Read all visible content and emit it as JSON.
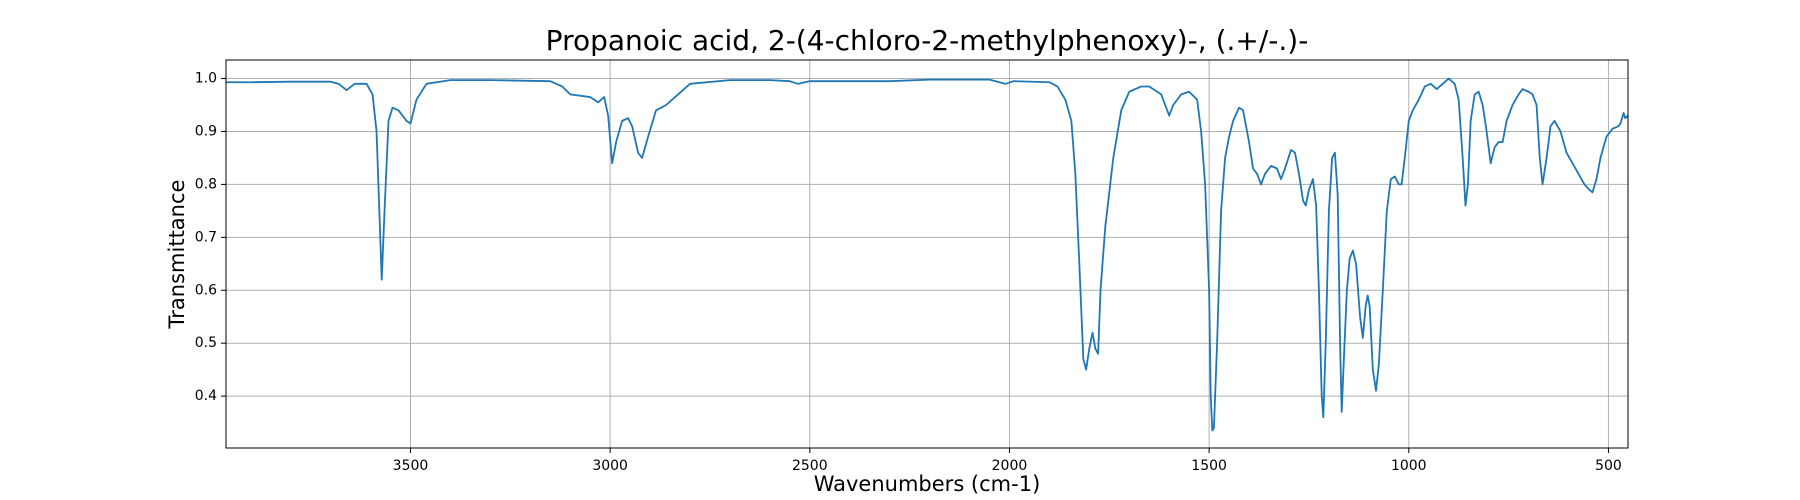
{
  "chart_data": {
    "type": "line",
    "title": "Propanoic acid, 2-(4-chloro-2-methylphenoxy)-, (.+/-.)-",
    "x_label": "Wavenumbers (cm-1)",
    "y_label": "Transmittance",
    "xlim": [
      3962,
      451
    ],
    "ylim": [
      0.302,
      1.035
    ],
    "xticks": [
      3500,
      3000,
      2500,
      2000,
      1500,
      1000,
      500
    ],
    "yticks": [
      {
        "value": 0.4,
        "label": "0.4"
      },
      {
        "value": 0.5,
        "label": "0.5"
      },
      {
        "value": 0.6,
        "label": "0.6"
      },
      {
        "value": 0.7,
        "label": "0.7"
      },
      {
        "value": 0.8,
        "label": "0.8"
      },
      {
        "value": 0.9,
        "label": "0.9"
      },
      {
        "value": 1.0,
        "label": "1.0"
      }
    ],
    "grid": true,
    "series": [
      {
        "color": "#1f77b4",
        "x": [
          3962,
          3900,
          3800,
          3700,
          3680,
          3660,
          3640,
          3610,
          3595,
          3585,
          3578,
          3572,
          3565,
          3555,
          3545,
          3530,
          3510,
          3500,
          3485,
          3460,
          3400,
          3300,
          3150,
          3120,
          3100,
          3050,
          3030,
          3015,
          3005,
          2995,
          2985,
          2970,
          2955,
          2945,
          2930,
          2920,
          2905,
          2885,
          2860,
          2830,
          2800,
          2700,
          2600,
          2550,
          2530,
          2500,
          2400,
          2300,
          2200,
          2050,
          2010,
          1990,
          1900,
          1880,
          1860,
          1845,
          1835,
          1825,
          1815,
          1808,
          1800,
          1792,
          1785,
          1778,
          1772,
          1760,
          1740,
          1720,
          1700,
          1670,
          1650,
          1620,
          1600,
          1590,
          1570,
          1550,
          1530,
          1520,
          1510,
          1500,
          1496,
          1492,
          1488,
          1480,
          1470,
          1460,
          1450,
          1440,
          1425,
          1415,
          1400,
          1390,
          1380,
          1370,
          1360,
          1345,
          1330,
          1320,
          1310,
          1295,
          1285,
          1275,
          1265,
          1258,
          1250,
          1240,
          1232,
          1225,
          1218,
          1214,
          1208,
          1200,
          1192,
          1185,
          1178,
          1172,
          1168,
          1162,
          1155,
          1148,
          1140,
          1132,
          1122,
          1115,
          1108,
          1103,
          1098,
          1090,
          1082,
          1075,
          1065,
          1055,
          1045,
          1035,
          1025,
          1018,
          1010,
          1000,
          990,
          975,
          960,
          945,
          930,
          915,
          900,
          885,
          875,
          865,
          858,
          852,
          845,
          835,
          825,
          815,
          805,
          795,
          785,
          775,
          765,
          755,
          740,
          725,
          715,
          700,
          690,
          680,
          672,
          665,
          655,
          645,
          635,
          620,
          605,
          590,
          575,
          560,
          548,
          540,
          530,
          520,
          505,
          490,
          475,
          470,
          462,
          458,
          451
        ],
        "values": [
          0.993,
          0.993,
          0.994,
          0.994,
          0.99,
          0.978,
          0.99,
          0.99,
          0.97,
          0.9,
          0.75,
          0.62,
          0.75,
          0.92,
          0.945,
          0.94,
          0.92,
          0.915,
          0.96,
          0.99,
          0.997,
          0.997,
          0.995,
          0.985,
          0.97,
          0.965,
          0.955,
          0.965,
          0.93,
          0.84,
          0.88,
          0.92,
          0.925,
          0.91,
          0.86,
          0.85,
          0.89,
          0.94,
          0.95,
          0.97,
          0.99,
          0.997,
          0.997,
          0.995,
          0.99,
          0.995,
          0.995,
          0.995,
          0.998,
          0.998,
          0.99,
          0.995,
          0.993,
          0.985,
          0.96,
          0.92,
          0.82,
          0.65,
          0.47,
          0.45,
          0.49,
          0.52,
          0.49,
          0.48,
          0.6,
          0.72,
          0.85,
          0.94,
          0.975,
          0.985,
          0.985,
          0.97,
          0.93,
          0.95,
          0.97,
          0.975,
          0.96,
          0.9,
          0.8,
          0.6,
          0.4,
          0.335,
          0.34,
          0.5,
          0.75,
          0.85,
          0.89,
          0.92,
          0.945,
          0.94,
          0.88,
          0.83,
          0.82,
          0.8,
          0.82,
          0.835,
          0.83,
          0.81,
          0.83,
          0.865,
          0.86,
          0.82,
          0.77,
          0.76,
          0.79,
          0.81,
          0.76,
          0.6,
          0.4,
          0.36,
          0.5,
          0.75,
          0.85,
          0.86,
          0.78,
          0.5,
          0.37,
          0.48,
          0.6,
          0.66,
          0.675,
          0.65,
          0.55,
          0.51,
          0.57,
          0.59,
          0.57,
          0.45,
          0.41,
          0.46,
          0.6,
          0.75,
          0.81,
          0.815,
          0.8,
          0.8,
          0.85,
          0.92,
          0.94,
          0.96,
          0.985,
          0.99,
          0.98,
          0.99,
          1.0,
          0.99,
          0.96,
          0.85,
          0.76,
          0.8,
          0.92,
          0.97,
          0.975,
          0.95,
          0.9,
          0.84,
          0.87,
          0.88,
          0.88,
          0.92,
          0.95,
          0.97,
          0.98,
          0.975,
          0.97,
          0.95,
          0.85,
          0.8,
          0.85,
          0.91,
          0.92,
          0.9,
          0.86,
          0.84,
          0.82,
          0.8,
          0.79,
          0.785,
          0.81,
          0.85,
          0.89,
          0.905,
          0.91,
          0.915,
          0.935,
          0.925,
          0.93
        ]
      }
    ]
  }
}
